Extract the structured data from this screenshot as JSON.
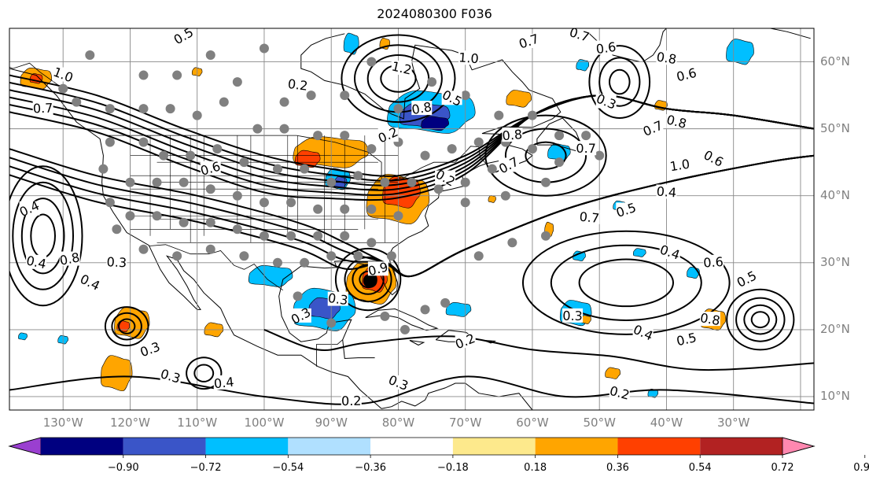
{
  "title": "2024080300 F036",
  "latitude_labels": [
    {
      "text": "60°N",
      "lat": 60
    },
    {
      "text": "50°N",
      "lat": 50
    },
    {
      "text": "40°N",
      "lat": 40
    },
    {
      "text": "30°N",
      "lat": 30
    },
    {
      "text": "20°N",
      "lat": 20
    },
    {
      "text": "10°N",
      "lat": 10
    }
  ],
  "longitude_labels": [
    {
      "text": "130°W",
      "lon": -130
    },
    {
      "text": "120°W",
      "lon": -120
    },
    {
      "text": "110°W",
      "lon": -110
    },
    {
      "text": "100°W",
      "lon": -100
    },
    {
      "text": "90°W",
      "lon": -90
    },
    {
      "text": "80°W",
      "lon": -80
    },
    {
      "text": "70°W",
      "lon": -70
    },
    {
      "text": "60°W",
      "lon": -60
    },
    {
      "text": "50°W",
      "lon": -50
    },
    {
      "text": "40°W",
      "lon": -40
    },
    {
      "text": "30°W",
      "lon": -30
    }
  ],
  "map_extent": {
    "lon_min": -138,
    "lon_max": -18,
    "lat_min": 8,
    "lat_max": 65
  },
  "colorbar": {
    "ticks": [
      "−0.90",
      "−0.72",
      "−0.54",
      "−0.36",
      "−0.18",
      "0.18",
      "0.36",
      "0.54",
      "0.72",
      "0.90"
    ],
    "colors": [
      "#9a3fd0",
      "#000080",
      "#3a55c8",
      "#00bfff",
      "#b0e0ff",
      "#ffffff",
      "#fde98c",
      "#ffa500",
      "#ff4000",
      "#b22222",
      "#ff88b0"
    ]
  },
  "contour_labels": [
    {
      "text": "0.5",
      "lon": -112,
      "lat": 63.8
    },
    {
      "text": "0.2",
      "lon": -95,
      "lat": 56.5
    },
    {
      "text": "0.6",
      "lon": -108,
      "lat": 44
    },
    {
      "text": "1.0",
      "lon": -130,
      "lat": 58
    },
    {
      "text": "0.7",
      "lon": -133,
      "lat": 53
    },
    {
      "text": "0.4",
      "lon": -135,
      "lat": 38
    },
    {
      "text": "0.4",
      "lon": -134,
      "lat": 30
    },
    {
      "text": "0.8",
      "lon": -129,
      "lat": 30.5
    },
    {
      "text": "0.4",
      "lon": -126,
      "lat": 27
    },
    {
      "text": "0.3",
      "lon": -122,
      "lat": 30
    },
    {
      "text": "0.3",
      "lon": -117,
      "lat": 17
    },
    {
      "text": "0.3",
      "lon": -114,
      "lat": 13
    },
    {
      "text": "0.4",
      "lon": -106,
      "lat": 12
    },
    {
      "text": "0.3",
      "lon": -94.5,
      "lat": 22
    },
    {
      "text": "0.3",
      "lon": -89,
      "lat": 24.5
    },
    {
      "text": "0.9",
      "lon": -83,
      "lat": 29
    },
    {
      "text": "0.3",
      "lon": -80,
      "lat": 12
    },
    {
      "text": "0.2",
      "lon": -87,
      "lat": 9.3
    },
    {
      "text": "0.2",
      "lon": -81.5,
      "lat": 49
    },
    {
      "text": "1.2",
      "lon": -79.5,
      "lat": 59
    },
    {
      "text": "0.8",
      "lon": -76.5,
      "lat": 53
    },
    {
      "text": "0.5",
      "lon": -72,
      "lat": 54.5
    },
    {
      "text": "1.0",
      "lon": -69.5,
      "lat": 60.5
    },
    {
      "text": "0.7",
      "lon": -60.5,
      "lat": 63
    },
    {
      "text": "0.7",
      "lon": -53,
      "lat": 64
    },
    {
      "text": "0.8",
      "lon": -63,
      "lat": 49
    },
    {
      "text": "0.7",
      "lon": -63.5,
      "lat": 44.5
    },
    {
      "text": "0.8",
      "lon": -40,
      "lat": 60.5
    },
    {
      "text": "0.6",
      "lon": -37,
      "lat": 58
    },
    {
      "text": "0.3",
      "lon": -49,
      "lat": 54
    },
    {
      "text": "0.7",
      "lon": -52,
      "lat": 47
    },
    {
      "text": "0.7",
      "lon": -42,
      "lat": 50
    },
    {
      "text": "0.8",
      "lon": -38.5,
      "lat": 51
    },
    {
      "text": "1.0",
      "lon": -38,
      "lat": 44.5
    },
    {
      "text": "0.6",
      "lon": -33,
      "lat": 45.5
    },
    {
      "text": "0.4",
      "lon": -40,
      "lat": 40.5
    },
    {
      "text": "0.5",
      "lon": -46,
      "lat": 37.8
    },
    {
      "text": "0.4",
      "lon": -39.5,
      "lat": 31.5
    },
    {
      "text": "0.6",
      "lon": -33,
      "lat": 30
    },
    {
      "text": "0.5",
      "lon": -28,
      "lat": 27.5
    },
    {
      "text": "0.8",
      "lon": -33.5,
      "lat": 21.5
    },
    {
      "text": "0.5",
      "lon": -37,
      "lat": 18.5
    },
    {
      "text": "0.4",
      "lon": -43.5,
      "lat": 19.5
    },
    {
      "text": "0.3",
      "lon": -54,
      "lat": 22
    },
    {
      "text": "0.2",
      "lon": -70,
      "lat": 18.2
    },
    {
      "text": "0.2",
      "lon": -47,
      "lat": 10.5
    },
    {
      "text": "0.6",
      "lon": -49,
      "lat": 62
    },
    {
      "text": "0.2",
      "lon": -73,
      "lat": 42.6
    },
    {
      "text": "0.7",
      "lon": -51.5,
      "lat": 36.7
    }
  ]
}
